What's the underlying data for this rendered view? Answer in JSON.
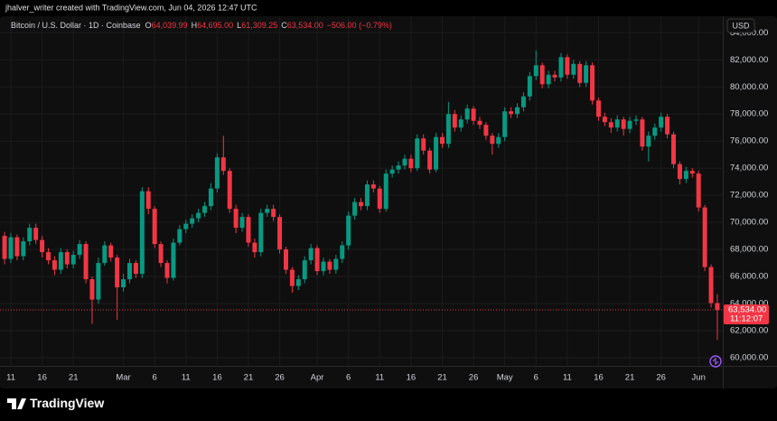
{
  "header": {
    "credit": "jhalver_writer created with TradingView.com, Jun 04, 2026 12:47 UTC"
  },
  "chart_data": {
    "type": "candlestick",
    "title": "Bitcoin / U.S. Dollar · 1D · Coinbase",
    "ohlc_labels": [
      {
        "key": "O",
        "text": "64,039.99"
      },
      {
        "key": "H",
        "text": "64,695.00"
      },
      {
        "key": "L",
        "text": "61,309.25"
      },
      {
        "key": "C",
        "text": "63,534.00"
      }
    ],
    "change_label": "−506.00 (−0.79%)",
    "currency": "USD",
    "last_price_label": "63,534.00",
    "countdown": "11:12:07",
    "up_color": "#089981",
    "down_color": "#f23645",
    "grid": true,
    "categories": [
      null,
      "11",
      null,
      null,
      null,
      null,
      "16",
      null,
      null,
      null,
      null,
      "21",
      null,
      null,
      null,
      null,
      null,
      null,
      null,
      "Mar",
      null,
      null,
      null,
      null,
      "6",
      null,
      null,
      null,
      null,
      "11",
      null,
      null,
      null,
      null,
      "16",
      null,
      null,
      null,
      null,
      "21",
      null,
      null,
      null,
      null,
      "26",
      null,
      null,
      null,
      null,
      null,
      "Apr",
      null,
      null,
      null,
      null,
      "6",
      null,
      null,
      null,
      null,
      "11",
      null,
      null,
      null,
      null,
      "16",
      null,
      null,
      null,
      null,
      "21",
      null,
      null,
      null,
      null,
      "26",
      null,
      null,
      null,
      null,
      "May",
      null,
      null,
      null,
      null,
      "6",
      null,
      null,
      null,
      null,
      "11",
      null,
      null,
      null,
      null,
      "16",
      null,
      null,
      null,
      null,
      "21",
      null,
      null,
      null,
      null,
      "26",
      null,
      null,
      null,
      null,
      null,
      "Jun",
      null,
      null,
      null
    ],
    "open": [
      69000,
      67300,
      68900,
      67500,
      68600,
      69600,
      68700,
      67800,
      67200,
      66500,
      67800,
      66900,
      67600,
      68400,
      65800,
      64300,
      67000,
      68300,
      67400,
      65200,
      65800,
      67000,
      66200,
      72300,
      71000,
      68400,
      67000,
      65900,
      68500,
      69500,
      69900,
      70300,
      70700,
      71200,
      72500,
      74800,
      73800,
      71000,
      69600,
      70400,
      68500,
      67800,
      70700,
      71000,
      70400,
      68000,
      66500,
      65300,
      65800,
      67200,
      68100,
      66400,
      67100,
      66500,
      67300,
      68300,
      70500,
      71500,
      71200,
      72800,
      72500,
      71000,
      73600,
      73900,
      74200,
      74700,
      74000,
      76200,
      75300,
      73900,
      76300,
      75800,
      78000,
      77000,
      77600,
      78400,
      77500,
      77200,
      76400,
      75800,
      76300,
      78200,
      78000,
      78500,
      79300,
      80800,
      81600,
      80200,
      80900,
      80700,
      82200,
      80900,
      81700,
      80300,
      81600,
      79000,
      77800,
      77400,
      77000,
      77600,
      76900,
      77500,
      77600,
      75600,
      76400,
      77000,
      77800,
      76500,
      74300,
      73200,
      73800,
      73600,
      71100,
      66700,
      64039.99
    ],
    "high": [
      69300,
      69200,
      69100,
      68900,
      69900,
      69900,
      69000,
      68100,
      67500,
      68100,
      68000,
      67900,
      68700,
      68600,
      66000,
      67400,
      68600,
      68500,
      67600,
      66200,
      67300,
      67200,
      72600,
      72600,
      71200,
      68600,
      67200,
      68800,
      69800,
      70200,
      70600,
      71000,
      71500,
      72900,
      75100,
      76400,
      74000,
      71300,
      70700,
      70600,
      68800,
      71000,
      71300,
      71300,
      70600,
      68200,
      66700,
      66100,
      67500,
      68400,
      68300,
      67400,
      67300,
      67600,
      68600,
      70800,
      71800,
      71800,
      73100,
      73100,
      72700,
      73900,
      74200,
      74500,
      75000,
      75000,
      76500,
      76500,
      75500,
      76600,
      76600,
      78900,
      78300,
      77900,
      78700,
      78600,
      77800,
      77400,
      76600,
      76600,
      78500,
      78500,
      78800,
      79600,
      81100,
      82700,
      81800,
      81200,
      81200,
      82500,
      82400,
      82000,
      81900,
      81900,
      81800,
      79200,
      78100,
      77700,
      77900,
      77800,
      77800,
      77900,
      77800,
      76700,
      77300,
      78100,
      78000,
      76700,
      74500,
      74100,
      74000,
      73800,
      71300,
      66900,
      64695
    ],
    "low": [
      66900,
      67000,
      67200,
      67200,
      68300,
      68400,
      67400,
      66900,
      66100,
      66200,
      66600,
      66600,
      67300,
      65500,
      62500,
      64000,
      66800,
      67100,
      62800,
      64900,
      65500,
      65900,
      65900,
      70600,
      68100,
      66700,
      65500,
      65700,
      68300,
      69200,
      69600,
      70000,
      70400,
      70900,
      72200,
      73500,
      70700,
      69200,
      69300,
      68200,
      67400,
      67500,
      70400,
      70100,
      67700,
      66200,
      64800,
      65000,
      65500,
      66900,
      66100,
      66100,
      66200,
      66200,
      67000,
      68000,
      70200,
      70900,
      70900,
      72200,
      70700,
      70800,
      73300,
      73600,
      73900,
      73700,
      73800,
      75000,
      73600,
      73700,
      75500,
      75500,
      76700,
      76700,
      77300,
      77200,
      76900,
      76100,
      75000,
      75500,
      76000,
      77700,
      77700,
      78200,
      79000,
      80500,
      79900,
      79900,
      80400,
      80400,
      80600,
      80600,
      80000,
      80000,
      78700,
      77500,
      77100,
      76600,
      76700,
      76400,
      76600,
      77200,
      75300,
      74500,
      76100,
      76700,
      76200,
      74000,
      72800,
      72900,
      73300,
      70800,
      66400,
      63700,
      61309.25
    ],
    "close": [
      67300,
      68900,
      67500,
      68600,
      69600,
      68700,
      67800,
      67200,
      66500,
      67800,
      66900,
      67600,
      68400,
      65800,
      64300,
      67000,
      68300,
      67400,
      65200,
      65800,
      67000,
      66200,
      72300,
      71000,
      68400,
      67000,
      65900,
      68500,
      69500,
      69900,
      70300,
      70700,
      71200,
      72500,
      74800,
      73800,
      71000,
      69600,
      70400,
      68500,
      67800,
      70700,
      71000,
      70400,
      68000,
      66500,
      65300,
      65800,
      67200,
      68100,
      66400,
      67100,
      66500,
      67300,
      68300,
      70500,
      71500,
      71200,
      72800,
      72500,
      71000,
      73600,
      73900,
      74200,
      74700,
      74000,
      76200,
      75300,
      73900,
      76300,
      75800,
      78000,
      77000,
      77600,
      78400,
      77500,
      77200,
      76400,
      75800,
      76300,
      78200,
      78000,
      78500,
      79300,
      80800,
      81600,
      80200,
      80900,
      80700,
      82200,
      80900,
      81700,
      80300,
      81600,
      79000,
      77800,
      77400,
      77000,
      77600,
      76900,
      77500,
      77600,
      75600,
      76400,
      77000,
      77800,
      76500,
      74300,
      73200,
      73800,
      73600,
      71100,
      66700,
      64039.99,
      63534
    ],
    "ylim": [
      59400,
      85220
    ],
    "yticks": [
      {
        "value": 60000,
        "label": "60,000.00"
      },
      {
        "value": 62000,
        "label": "62,000.00"
      },
      {
        "value": 64000,
        "label": "64,000.00"
      },
      {
        "value": 66000,
        "label": "66,000.00"
      },
      {
        "value": 68000,
        "label": "68,000.00"
      },
      {
        "value": 70000,
        "label": "70,000.00"
      },
      {
        "value": 72000,
        "label": "72,000.00"
      },
      {
        "value": 74000,
        "label": "74,000.00"
      },
      {
        "value": 76000,
        "label": "76,000.00"
      },
      {
        "value": 78000,
        "label": "78,000.00"
      },
      {
        "value": 80000,
        "label": "80,000.00"
      },
      {
        "value": 82000,
        "label": "82,000.00"
      },
      {
        "value": 84000,
        "label": "84,000.00"
      }
    ]
  },
  "footer": {
    "brand": "TradingView"
  }
}
